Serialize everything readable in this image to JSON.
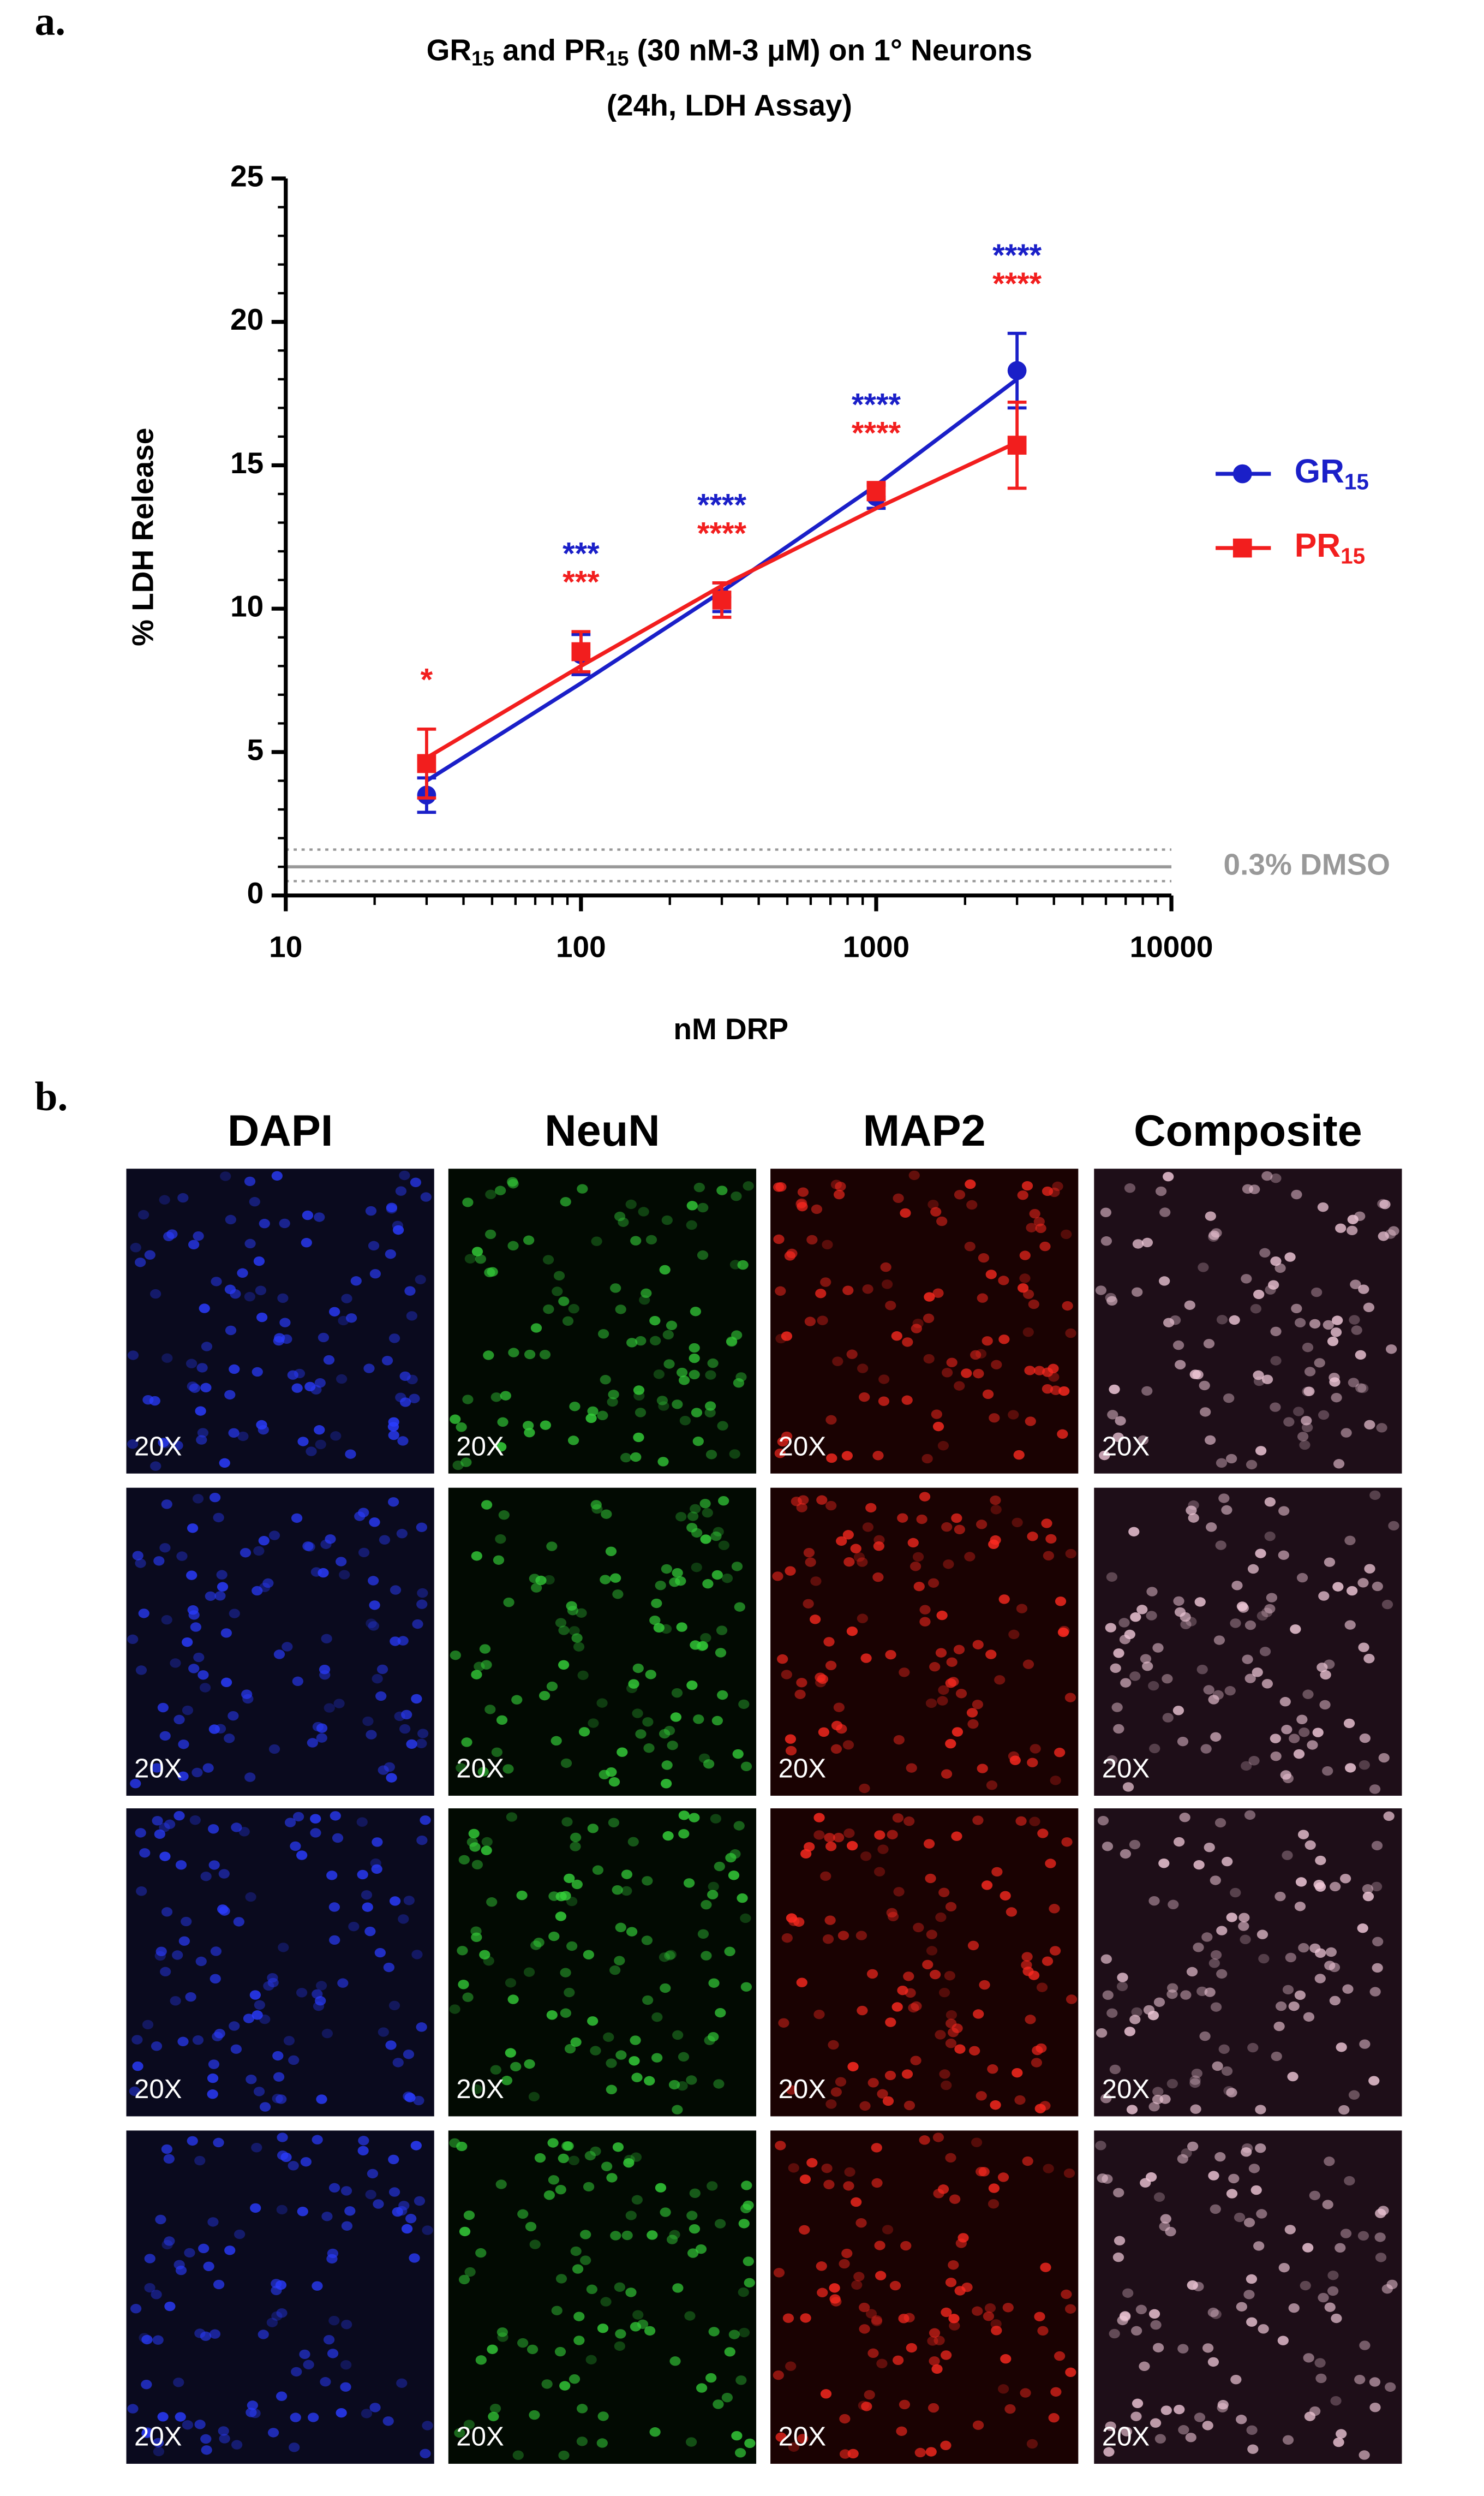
{
  "panel_a": {
    "label": "a.",
    "chart_data": {
      "type": "line",
      "title_line1": [
        "GR",
        "15",
        " and PR",
        "15",
        " (30 nM-3 μM) on 1° Neurons"
      ],
      "title_line2": "(24h, LDH Assay)",
      "x_label": "nM DRP",
      "y_label": "% LDH Release",
      "x": [
        30,
        100,
        300,
        1000,
        3000
      ],
      "xlim": [
        10,
        10000
      ],
      "xticks": [
        10,
        100,
        1000,
        10000
      ],
      "x_log": true,
      "ylim": [
        0,
        25
      ],
      "yticks": [
        0,
        5,
        10,
        15,
        20,
        25
      ],
      "series": [
        {
          "name": "GR",
          "name_sub": "15",
          "color": "#1a1fc8",
          "marker": "circle",
          "values": [
            3.5,
            8.4,
            10.4,
            13.9,
            18.3
          ],
          "errors": [
            0.6,
            0.7,
            0.5,
            0.4,
            1.3
          ],
          "fit": [
            4.0,
            7.4,
            10.6,
            14.3,
            18.0
          ],
          "annotations": [
            null,
            "***",
            "****",
            "****",
            "****"
          ]
        },
        {
          "name": "PR",
          "name_sub": "15",
          "color": "#f21e1e",
          "marker": "square",
          "values": [
            4.6,
            8.5,
            10.3,
            14.1,
            15.7
          ],
          "errors": [
            1.2,
            0.7,
            0.6,
            0.3,
            1.5
          ],
          "fit": [
            4.8,
            8.0,
            10.8,
            13.5,
            15.8
          ],
          "annotations": [
            "*",
            "***",
            "****",
            "****",
            "****"
          ]
        }
      ],
      "reference": {
        "label": "0.3% DMSO",
        "value": 1.0,
        "band": [
          0.5,
          1.6
        ],
        "color": "#999999"
      }
    }
  },
  "panel_b": {
    "label": "b.",
    "columns": [
      "DAPI",
      "NeuN",
      "MAP2",
      "Composite"
    ],
    "images": [
      [
        "20X",
        "20X",
        "20X",
        "20X"
      ],
      [
        "20X",
        "20X",
        "20X",
        "20X"
      ],
      [
        "20X",
        "20X",
        "20X",
        "20X"
      ],
      [
        "20X",
        "20X",
        "20X",
        "20X"
      ]
    ]
  }
}
